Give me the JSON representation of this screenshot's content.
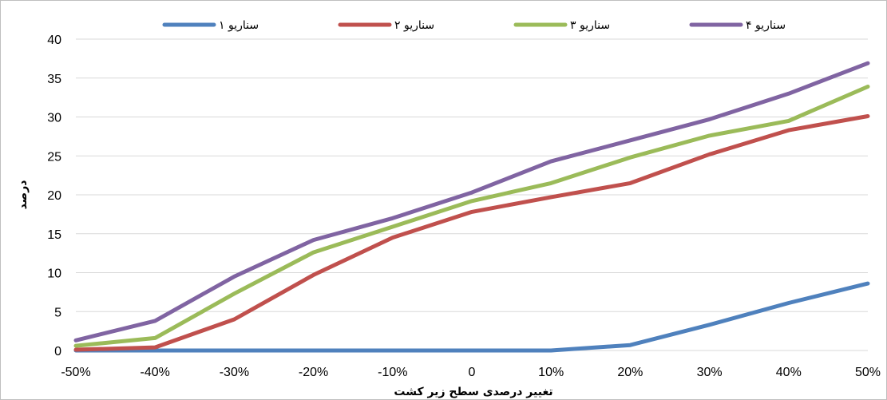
{
  "chart_data": {
    "type": "line",
    "title": "",
    "xlabel": "تغییر درصدی سطح زیر کشت",
    "ylabel": "درصد",
    "categories": [
      "-50%",
      "-40%",
      "-30%",
      "-20%",
      "-10%",
      "0",
      "10%",
      "20%",
      "30%",
      "40%",
      "50%"
    ],
    "ylim": [
      0,
      40
    ],
    "yticks": [
      0,
      5,
      10,
      15,
      20,
      25,
      30,
      35,
      40
    ],
    "grid": true,
    "legend_position": "top",
    "series": [
      {
        "name": "سناریو ۱",
        "color": "#4f81bd",
        "values": [
          0,
          0,
          0,
          0,
          0,
          0,
          0,
          0.7,
          3.3,
          6.1,
          8.6
        ]
      },
      {
        "name": "سناریو ۲",
        "color": "#c0504d",
        "values": [
          0.1,
          0.4,
          4.0,
          9.7,
          14.5,
          17.8,
          19.7,
          21.5,
          25.2,
          28.3,
          30.1
        ]
      },
      {
        "name": "سناریو ۳",
        "color": "#9bbb59",
        "values": [
          0.6,
          1.6,
          7.3,
          12.6,
          15.9,
          19.2,
          21.5,
          24.8,
          27.6,
          29.5,
          33.9
        ]
      },
      {
        "name": "سناریو ۴",
        "color": "#8064a2",
        "values": [
          1.3,
          3.8,
          9.5,
          14.2,
          17.0,
          20.3,
          24.3,
          27.0,
          29.7,
          33.0,
          36.9
        ]
      }
    ]
  }
}
